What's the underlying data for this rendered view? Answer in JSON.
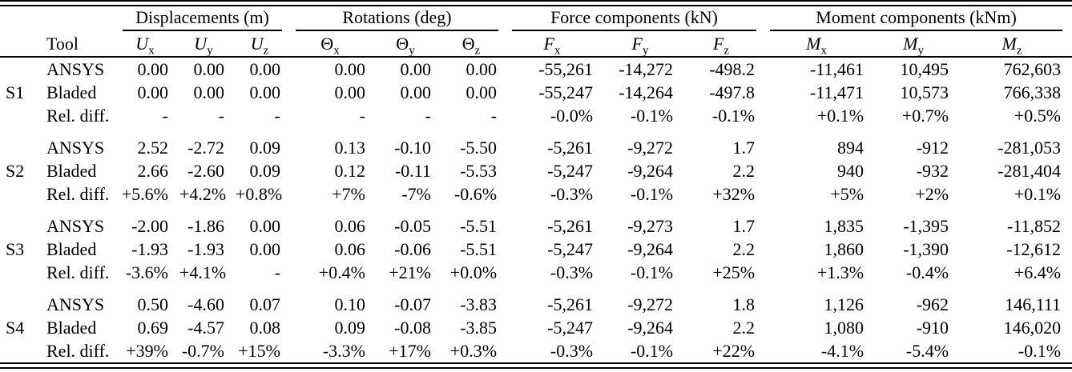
{
  "table": {
    "tool_header": "Tool",
    "groups": [
      {
        "label": "Displacements (m)",
        "columns": [
          {
            "base": "U",
            "sub": "x",
            "italic": true
          },
          {
            "base": "U",
            "sub": "y",
            "italic": true
          },
          {
            "base": "U",
            "sub": "z",
            "italic": true
          }
        ]
      },
      {
        "label": "Rotations (deg)",
        "columns": [
          {
            "base": "Θ",
            "sub": "x",
            "italic": false
          },
          {
            "base": "Θ",
            "sub": "y",
            "italic": false
          },
          {
            "base": "Θ",
            "sub": "z",
            "italic": false
          }
        ]
      },
      {
        "label": "Force components (kN)",
        "columns": [
          {
            "base": "F",
            "sub": "x",
            "italic": true
          },
          {
            "base": "F",
            "sub": "y",
            "italic": true
          },
          {
            "base": "F",
            "sub": "z",
            "italic": true
          }
        ]
      },
      {
        "label": "Moment components (kNm)",
        "columns": [
          {
            "base": "M",
            "sub": "x",
            "italic": true
          },
          {
            "base": "M",
            "sub": "y",
            "italic": true
          },
          {
            "base": "M",
            "sub": "z",
            "italic": true
          }
        ]
      }
    ],
    "row_groups": [
      {
        "id": "S1",
        "rows": [
          {
            "tool": "ANSYS",
            "values": [
              "0.00",
              "0.00",
              "0.00",
              "0.00",
              "0.00",
              "0.00",
              "-55,261",
              "-14,272",
              "-498.2",
              "-11,461",
              "10,495",
              "762,603"
            ]
          },
          {
            "tool": "Bladed",
            "values": [
              "0.00",
              "0.00",
              "0.00",
              "0.00",
              "0.00",
              "0.00",
              "-55,247",
              "-14,264",
              "-497.8",
              "-11,471",
              "10,573",
              "766,338"
            ]
          },
          {
            "tool": "Rel. diff.",
            "values": [
              "-",
              "-",
              "-",
              "-",
              "-",
              "-",
              "-0.0%",
              "-0.1%",
              "-0.1%",
              "+0.1%",
              "+0.7%",
              "+0.5%"
            ]
          }
        ]
      },
      {
        "id": "S2",
        "rows": [
          {
            "tool": "ANSYS",
            "values": [
              "2.52",
              "-2.72",
              "0.09",
              "0.13",
              "-0.10",
              "-5.50",
              "-5,261",
              "-9,272",
              "1.7",
              "894",
              "-912",
              "-281,053"
            ]
          },
          {
            "tool": "Bladed",
            "values": [
              "2.66",
              "-2.60",
              "0.09",
              "0.12",
              "-0.11",
              "-5.53",
              "-5,247",
              "-9,264",
              "2.2",
              "940",
              "-932",
              "-281,404"
            ]
          },
          {
            "tool": "Rel. diff.",
            "values": [
              "+5.6%",
              "+4.2%",
              "+0.8%",
              "+7%",
              "-7%",
              "-0.6%",
              "-0.3%",
              "-0.1%",
              "+32%",
              "+5%",
              "+2%",
              "+0.1%"
            ]
          }
        ]
      },
      {
        "id": "S3",
        "rows": [
          {
            "tool": "ANSYS",
            "values": [
              "-2.00",
              "-1.86",
              "0.00",
              "0.06",
              "-0.05",
              "-5.51",
              "-5,261",
              "-9,273",
              "1.7",
              "1,835",
              "-1,395",
              "-11,852"
            ]
          },
          {
            "tool": "Bladed",
            "values": [
              "-1.93",
              "-1.93",
              "0.00",
              "0.06",
              "-0.06",
              "-5.51",
              "-5,247",
              "-9,264",
              "2.2",
              "1,860",
              "-1,390",
              "-12,612"
            ]
          },
          {
            "tool": "Rel. diff.",
            "values": [
              "-3.6%",
              "+4.1%",
              "-",
              "+0.4%",
              "+21%",
              "+0.0%",
              "-0.3%",
              "-0.1%",
              "+25%",
              "+1.3%",
              "-0.4%",
              "+6.4%"
            ]
          }
        ]
      },
      {
        "id": "S4",
        "rows": [
          {
            "tool": "ANSYS",
            "values": [
              "0.50",
              "-4.60",
              "0.07",
              "0.10",
              "-0.07",
              "-3.83",
              "-5,261",
              "-9,272",
              "1.8",
              "1,126",
              "-962",
              "146,111"
            ]
          },
          {
            "tool": "Bladed",
            "values": [
              "0.69",
              "-4.57",
              "0.08",
              "0.09",
              "-0.08",
              "-3.85",
              "-5,247",
              "-9,264",
              "2.2",
              "1,080",
              "-910",
              "146,020"
            ]
          },
          {
            "tool": "Rel. diff.",
            "values": [
              "+39%",
              "-0.7%",
              "+15%",
              "-3.3%",
              "+17%",
              "+0.3%",
              "-0.3%",
              "-0.1%",
              "+22%",
              "-4.1%",
              "-5.4%",
              "-0.1%"
            ]
          }
        ]
      }
    ],
    "colors": {
      "text": "#000000",
      "background": "#ffffff",
      "rule": "#000000"
    }
  }
}
